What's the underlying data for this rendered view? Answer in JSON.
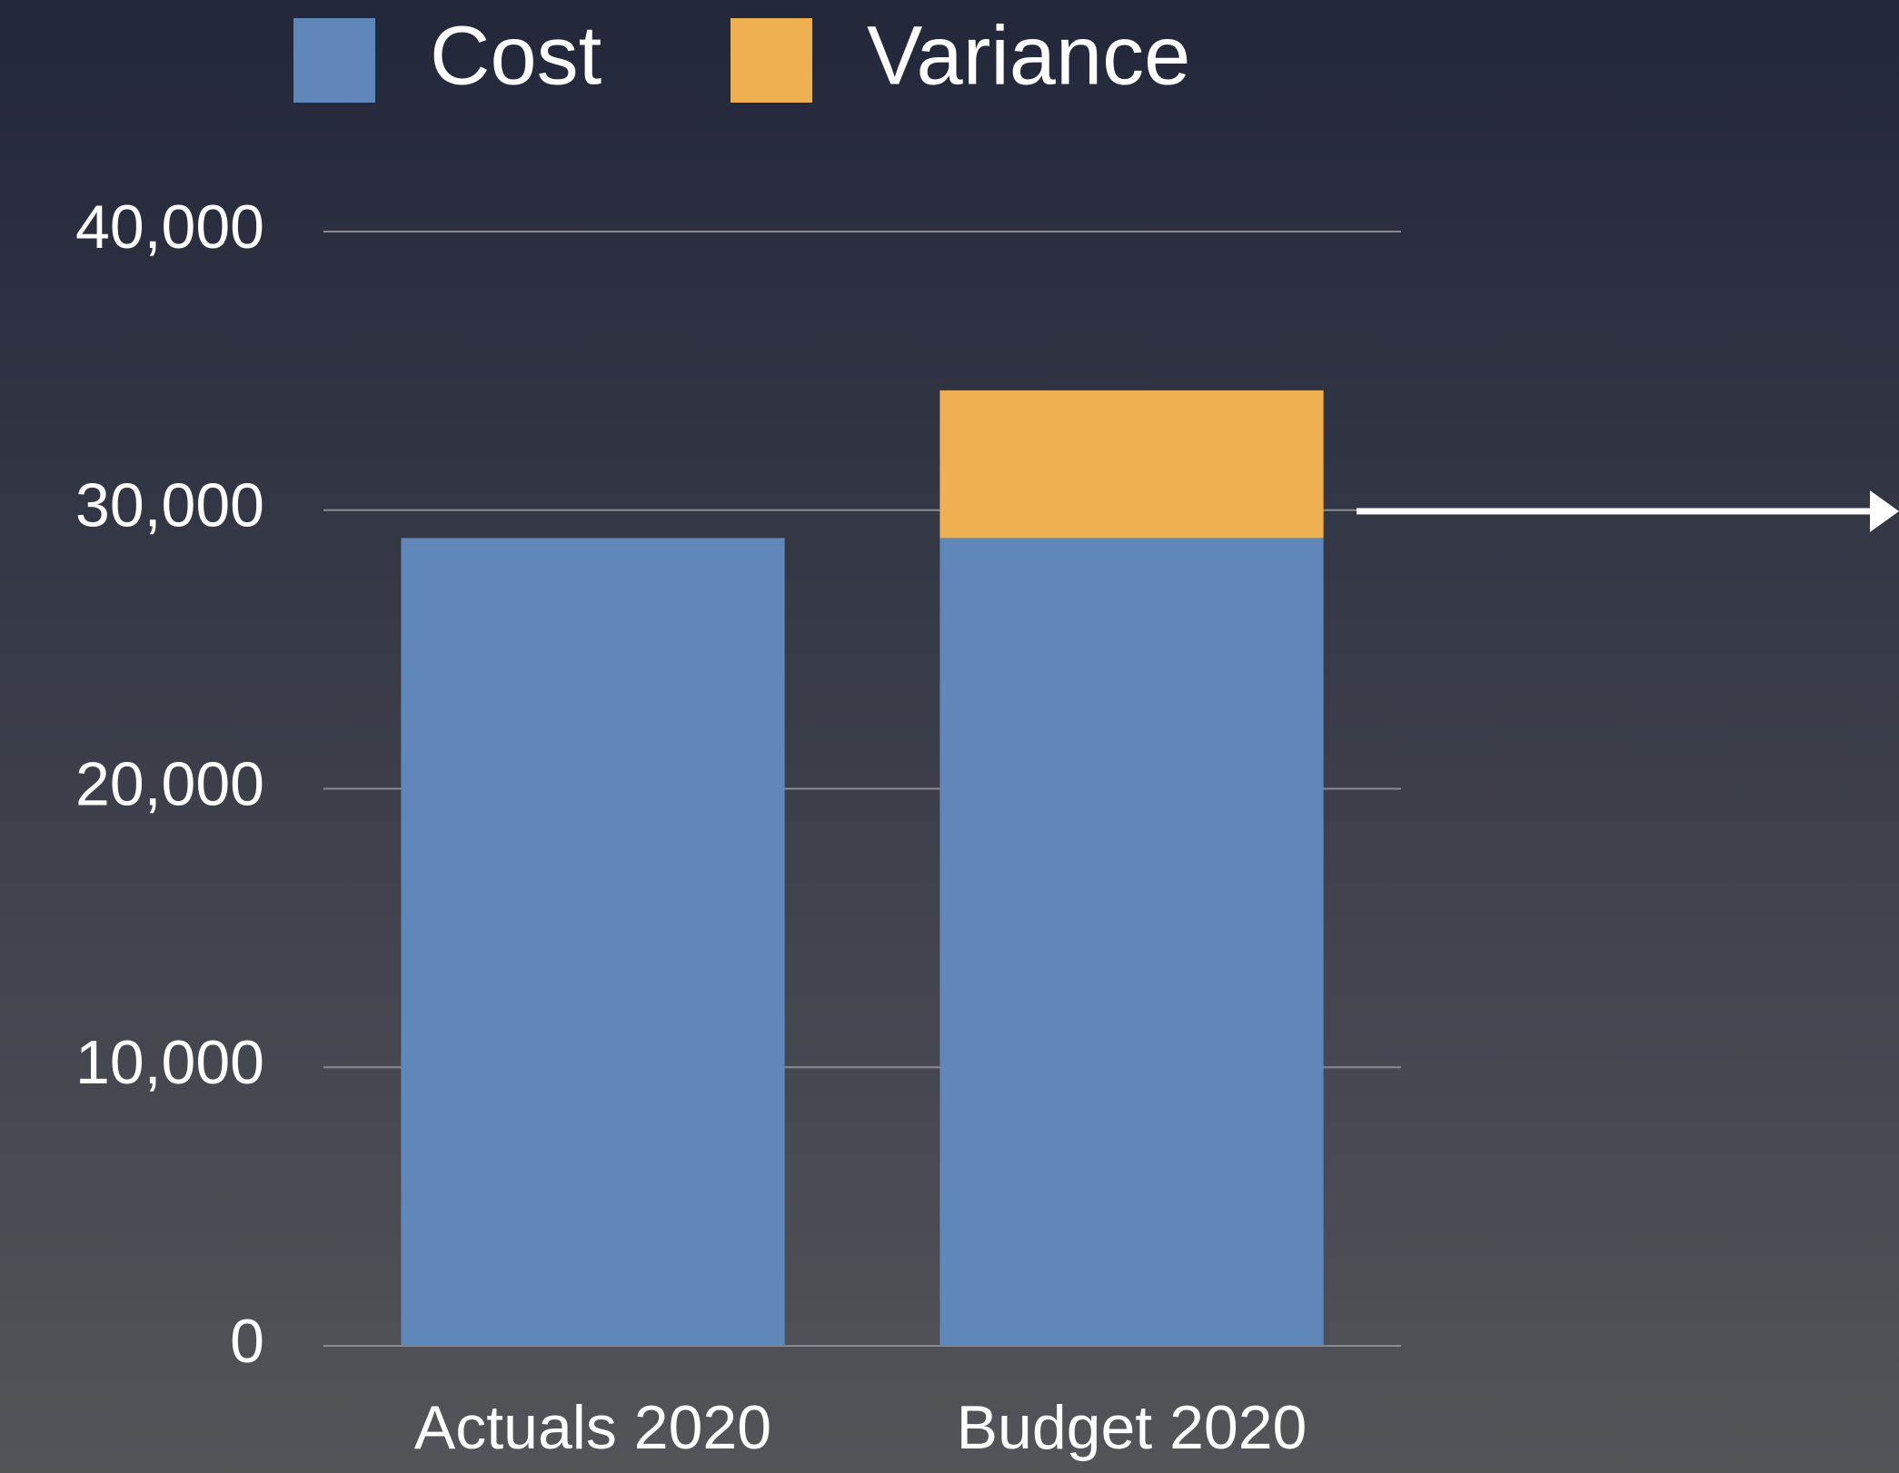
{
  "chart_data": {
    "type": "stacked_bar",
    "categories": [
      "Actuals 2020",
      "Budget 2020"
    ],
    "series": [
      {
        "name": "Cost",
        "color": "#5f87b9",
        "values": [
          29000,
          29000
        ]
      },
      {
        "name": "Variance",
        "color": "#eeb050",
        "values": [
          0,
          5300
        ]
      }
    ],
    "ylim": [
      0,
      40000
    ],
    "yticks": [
      0,
      {
        "value": 10000,
        "label": "10,000"
      },
      {
        "value": 20000,
        "label": "20,000"
      },
      {
        "value": 30000,
        "label": "30,000"
      },
      {
        "value": 40000,
        "label": "40,000"
      }
    ],
    "grid": true,
    "legend": "top"
  }
}
